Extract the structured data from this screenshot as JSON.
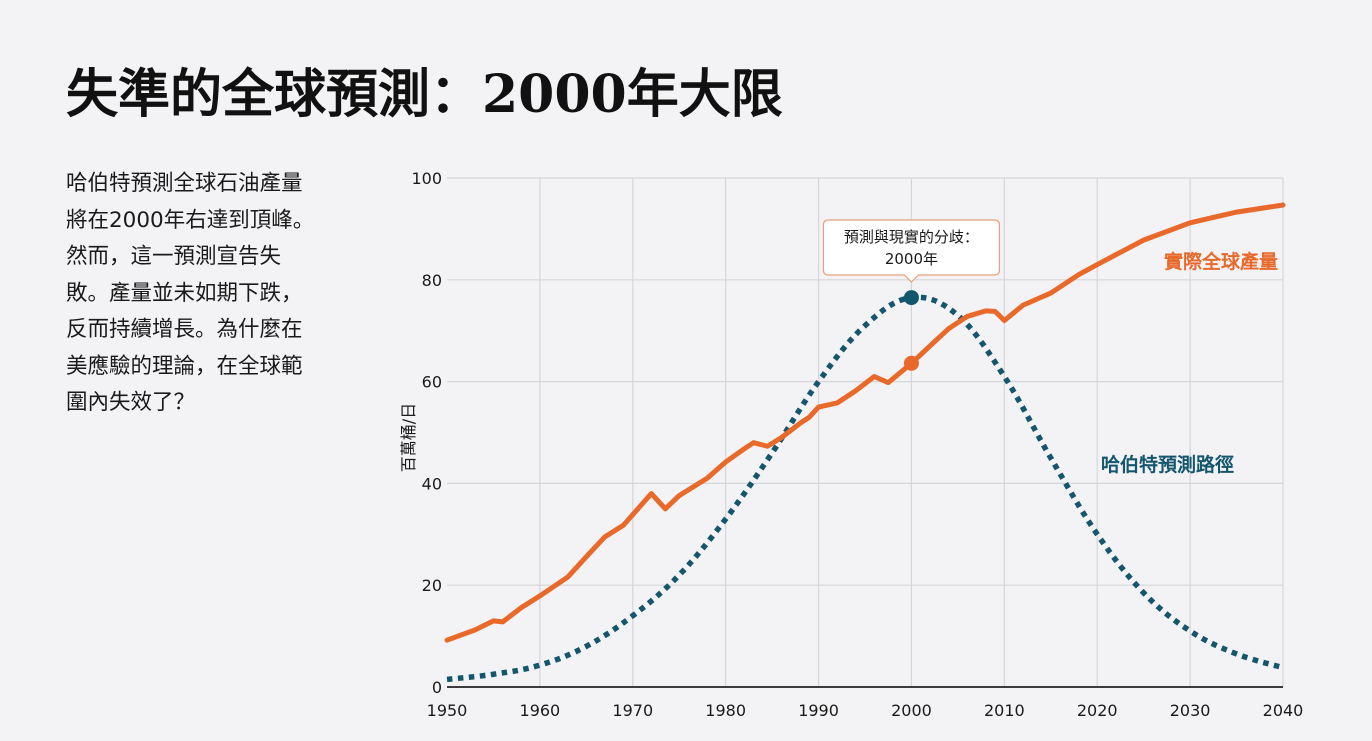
{
  "title": "失準的全球預測：2000年大限",
  "intro_lines": [
    "哈伯特預測全球石油產量",
    "將在2000年右達到頂峰。",
    "然而，這一預測宣告失",
    "敗。產量並未如期下跌，",
    "反而持續增長。為什麼在",
    "美應驗的理論，在全球範",
    "圍內失效了？"
  ],
  "colors": {
    "actual": "#e8692a",
    "hubbert": "#14566e",
    "grid": "#d6d6da",
    "axis": "#222222",
    "callout_border": "#e8a07a"
  },
  "chart_data": {
    "type": "line",
    "title": "",
    "xlabel": "",
    "ylabel": "百萬桶/日",
    "xlim": [
      1950,
      2040
    ],
    "ylim": [
      0,
      100
    ],
    "x_ticks": [
      1950,
      1960,
      1970,
      1980,
      1990,
      2000,
      2010,
      2020,
      2030,
      2040
    ],
    "y_ticks": [
      0,
      20,
      40,
      60,
      80,
      100
    ],
    "grid": true,
    "series": [
      {
        "name": "實際全球產量",
        "style": "solid",
        "color": "#e8692a",
        "points": [
          [
            1950,
            9.2
          ],
          [
            1953,
            11.2
          ],
          [
            1955,
            13.0
          ],
          [
            1956,
            12.8
          ],
          [
            1958,
            15.6
          ],
          [
            1960,
            17.9
          ],
          [
            1963,
            21.6
          ],
          [
            1965,
            25.6
          ],
          [
            1967,
            29.5
          ],
          [
            1969,
            31.8
          ],
          [
            1972,
            38.0
          ],
          [
            1973.5,
            35.0
          ],
          [
            1975,
            37.6
          ],
          [
            1978,
            41.0
          ],
          [
            1980,
            44.2
          ],
          [
            1982,
            46.8
          ],
          [
            1983,
            48.0
          ],
          [
            1984.5,
            47.3
          ],
          [
            1986,
            49.0
          ],
          [
            1988,
            51.8
          ],
          [
            1989,
            53.0
          ],
          [
            1990,
            55.0
          ],
          [
            1992,
            55.8
          ],
          [
            1994,
            58.2
          ],
          [
            1996,
            61.0
          ],
          [
            1997.5,
            59.8
          ],
          [
            2000,
            63.6
          ],
          [
            2002,
            67.0
          ],
          [
            2004,
            70.4
          ],
          [
            2006,
            72.8
          ],
          [
            2008,
            73.9
          ],
          [
            2009,
            73.8
          ],
          [
            2010,
            72.0
          ],
          [
            2012,
            75.0
          ],
          [
            2015,
            77.4
          ],
          [
            2018,
            81.0
          ],
          [
            2020,
            83.0
          ],
          [
            2025,
            87.8
          ],
          [
            2030,
            91.2
          ],
          [
            2035,
            93.3
          ],
          [
            2040,
            94.7
          ]
        ],
        "label": "實際全球產量",
        "marker": [
          2000,
          63.6
        ]
      },
      {
        "name": "哈伯特預測路徑",
        "style": "dotted",
        "color": "#14566e",
        "points": [
          [
            1950,
            1.5
          ],
          [
            1955,
            2.5
          ],
          [
            1960,
            4.3
          ],
          [
            1965,
            8.0
          ],
          [
            1970,
            14.0
          ],
          [
            1975,
            22.0
          ],
          [
            1980,
            33.0
          ],
          [
            1985,
            46.0
          ],
          [
            1990,
            60.0
          ],
          [
            1995,
            71.0
          ],
          [
            2000,
            76.5
          ],
          [
            2005,
            73.0
          ],
          [
            2010,
            61.0
          ],
          [
            2015,
            45.0
          ],
          [
            2020,
            30.0
          ],
          [
            2025,
            18.5
          ],
          [
            2030,
            11.0
          ],
          [
            2035,
            6.5
          ],
          [
            2040,
            3.8
          ]
        ],
        "label": "哈伯特預測路徑",
        "marker": [
          2000,
          76.5
        ]
      }
    ],
    "annotations": [
      {
        "text_lines": [
          "預測與現實的分歧：",
          "2000年"
        ],
        "anchor": [
          2000,
          76.5
        ]
      }
    ]
  }
}
